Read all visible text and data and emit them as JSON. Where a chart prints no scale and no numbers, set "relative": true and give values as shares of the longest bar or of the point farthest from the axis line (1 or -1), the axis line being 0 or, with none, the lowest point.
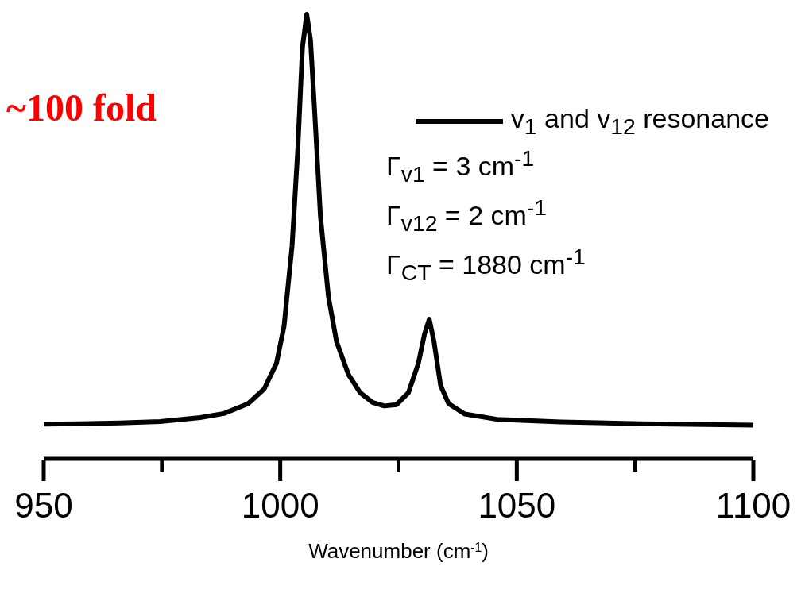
{
  "chart_data": {
    "type": "line",
    "relative": true,
    "xlabel": "Wavenumber (cm$^{-1}$)",
    "xlim": [
      950,
      1100
    ],
    "xticks": [
      950,
      {
        "value": 975,
        "label": null
      },
      1000,
      {
        "value": 1025,
        "label": null
      },
      1050,
      {
        "value": 1075,
        "label": null
      },
      1100
    ],
    "legend": "top right",
    "grid": false,
    "marker": "none",
    "line_style": "solid",
    "annotations": [
      "~100 fold",
      "Γ$_{v1}$ = 3 cm$^{-1}$",
      "Γ$_{v12}$ = 2 cm$^{-1}$",
      "Γ$_{CT}$ = 1880 cm$^{-1}$"
    ],
    "series": [
      {
        "name": "v$_{1}$ and v$_{12}$  resonance",
        "color": "#000000",
        "x": [
          950,
          957.6,
          966.1,
          974.6,
          983.1,
          988.1,
          993.2,
          996.6,
          999.2,
          1000.8,
          1002.5,
          1003.7,
          1004.7,
          1005.6,
          1006.4,
          1007.3,
          1008.5,
          1010.2,
          1011.9,
          1014.4,
          1016.9,
          1019.5,
          1022.0,
          1024.6,
          1027.1,
          1029.2,
          1030.5,
          1031.5,
          1032.5,
          1033.9,
          1035.6,
          1039.0,
          1045.8,
          1059.3,
          1076.3,
          1100
        ],
        "values": [
          0.078,
          0.079,
          0.081,
          0.084,
          0.093,
          0.102,
          0.124,
          0.157,
          0.215,
          0.298,
          0.479,
          0.694,
          0.926,
          1,
          0.942,
          0.777,
          0.545,
          0.364,
          0.264,
          0.19,
          0.149,
          0.127,
          0.119,
          0.122,
          0.149,
          0.215,
          0.281,
          0.314,
          0.264,
          0.165,
          0.124,
          0.101,
          0.089,
          0.083,
          0.079,
          0.076
        ]
      }
    ]
  }
}
